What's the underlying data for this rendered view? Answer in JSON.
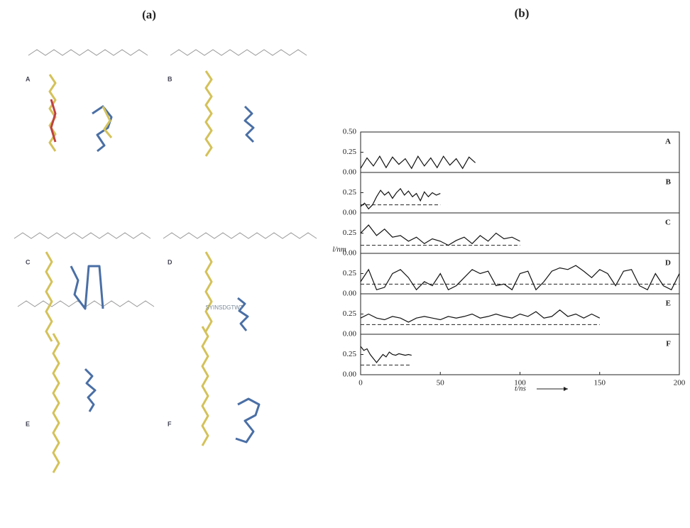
{
  "figure_labels": {
    "a": "(a)",
    "b": "(b)"
  },
  "structures": [
    {
      "label": "A"
    },
    {
      "label": "B"
    },
    {
      "label": "C"
    },
    {
      "label": "D"
    },
    {
      "label": "E"
    },
    {
      "label": "F",
      "sequence": "SYINSDGTWT"
    }
  ],
  "chart_data": {
    "type": "line",
    "ylabel": "l/nm",
    "xlabel": "t/ns",
    "xlim": [
      0,
      200
    ],
    "xticks": [
      0,
      50,
      100,
      150,
      200
    ],
    "ylim": [
      0,
      0.5
    ],
    "yticks": [
      {
        "value": 0,
        "label": "0.00"
      },
      {
        "value": 0.25,
        "label": "0.25"
      },
      {
        "value": 0.5,
        "label": "0.50"
      }
    ],
    "series": [
      {
        "name": "A",
        "color": "#111111",
        "x": [
          0,
          4,
          8,
          12,
          16,
          20,
          24,
          28,
          32,
          36,
          40,
          44,
          48,
          52,
          56,
          60,
          64,
          68,
          72
        ],
        "values": [
          0.05,
          0.18,
          0.08,
          0.2,
          0.06,
          0.19,
          0.1,
          0.17,
          0.05,
          0.2,
          0.08,
          0.18,
          0.06,
          0.2,
          0.09,
          0.17,
          0.05,
          0.19,
          0.12
        ]
      },
      {
        "name": "B",
        "color": "#111111",
        "reference": 0.1,
        "x": [
          0,
          2.5,
          5,
          7.5,
          10,
          12.5,
          15,
          17.5,
          20,
          22.5,
          25,
          27.5,
          30,
          32.5,
          35,
          37.5,
          40,
          42.5,
          45,
          47.5,
          50
        ],
        "values": [
          0.08,
          0.12,
          0.05,
          0.1,
          0.2,
          0.28,
          0.22,
          0.26,
          0.18,
          0.25,
          0.3,
          0.22,
          0.27,
          0.2,
          0.24,
          0.15,
          0.26,
          0.2,
          0.25,
          0.22,
          0.24
        ]
      },
      {
        "name": "C",
        "color": "#111111",
        "reference": 0.1,
        "x": [
          0,
          5,
          10,
          15,
          20,
          25,
          30,
          35,
          40,
          45,
          50,
          55,
          60,
          65,
          70,
          75,
          80,
          85,
          90,
          95,
          100
        ],
        "values": [
          0.25,
          0.35,
          0.22,
          0.3,
          0.2,
          0.22,
          0.15,
          0.2,
          0.12,
          0.18,
          0.15,
          0.1,
          0.16,
          0.2,
          0.12,
          0.22,
          0.15,
          0.25,
          0.18,
          0.2,
          0.15
        ]
      },
      {
        "name": "D",
        "color": "#111111",
        "reference": 0.12,
        "x": [
          0,
          5,
          10,
          15,
          20,
          25,
          30,
          35,
          40,
          45,
          50,
          55,
          60,
          65,
          70,
          75,
          80,
          85,
          90,
          95,
          100,
          105,
          110,
          115,
          120,
          125,
          130,
          135,
          140,
          145,
          150,
          155,
          160,
          165,
          170,
          175,
          180,
          185,
          190,
          195,
          200
        ],
        "values": [
          0.15,
          0.3,
          0.05,
          0.08,
          0.25,
          0.3,
          0.2,
          0.05,
          0.15,
          0.1,
          0.25,
          0.05,
          0.1,
          0.2,
          0.3,
          0.25,
          0.28,
          0.1,
          0.12,
          0.05,
          0.25,
          0.28,
          0.05,
          0.15,
          0.28,
          0.32,
          0.3,
          0.35,
          0.28,
          0.2,
          0.3,
          0.25,
          0.1,
          0.28,
          0.3,
          0.1,
          0.05,
          0.25,
          0.1,
          0.05,
          0.25
        ]
      },
      {
        "name": "E",
        "color": "#111111",
        "reference": 0.12,
        "x": [
          0,
          5,
          10,
          15,
          20,
          25,
          30,
          35,
          40,
          45,
          50,
          55,
          60,
          65,
          70,
          75,
          80,
          85,
          90,
          95,
          100,
          105,
          110,
          115,
          120,
          125,
          130,
          135,
          140,
          145,
          150
        ],
        "values": [
          0.2,
          0.25,
          0.2,
          0.18,
          0.22,
          0.2,
          0.15,
          0.2,
          0.22,
          0.2,
          0.18,
          0.22,
          0.2,
          0.22,
          0.25,
          0.2,
          0.22,
          0.25,
          0.22,
          0.2,
          0.25,
          0.22,
          0.28,
          0.2,
          0.22,
          0.3,
          0.22,
          0.25,
          0.2,
          0.25,
          0.2
        ]
      },
      {
        "name": "F",
        "color": "#111111",
        "reference": 0.12,
        "x": [
          0,
          2,
          4,
          6,
          8,
          10,
          12,
          14,
          16,
          18,
          20,
          22,
          24,
          26,
          28,
          30,
          32
        ],
        "values": [
          0.35,
          0.3,
          0.32,
          0.25,
          0.2,
          0.15,
          0.2,
          0.25,
          0.22,
          0.28,
          0.25,
          0.24,
          0.26,
          0.25,
          0.24,
          0.25,
          0.24
        ]
      }
    ]
  }
}
